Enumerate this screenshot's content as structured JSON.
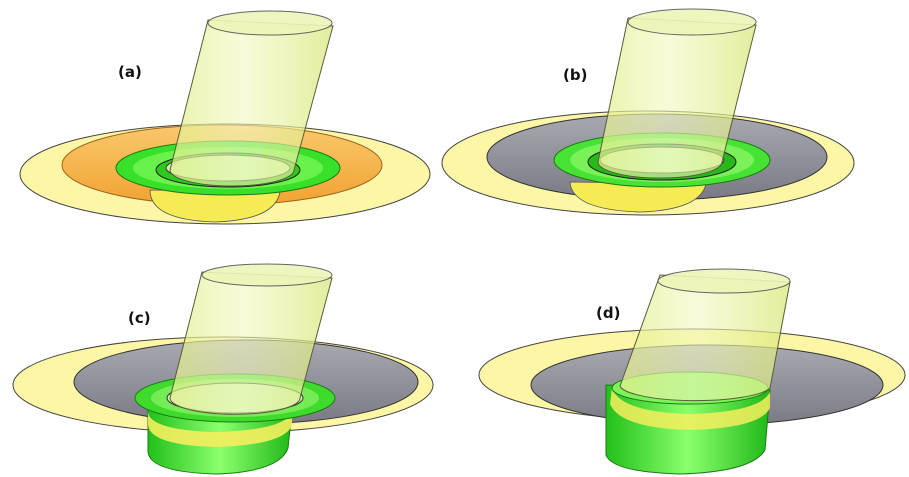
{
  "figure": {
    "panels": [
      {
        "id": "a",
        "label": "(a)"
      },
      {
        "id": "b",
        "label": "(b)"
      },
      {
        "id": "c",
        "label": "(c)"
      },
      {
        "id": "d",
        "label": "(d)"
      }
    ]
  },
  "colors": {
    "background": "#ffffff",
    "blank_sheet": "#fbf59a",
    "punch": "#e7f29a",
    "flange_orange": "#f6b24a",
    "flange_gray": "#8f8f99",
    "wall_green": "#3fe62e",
    "die_yellow": "#f3ee5a",
    "outline": "#3a3a3a"
  }
}
